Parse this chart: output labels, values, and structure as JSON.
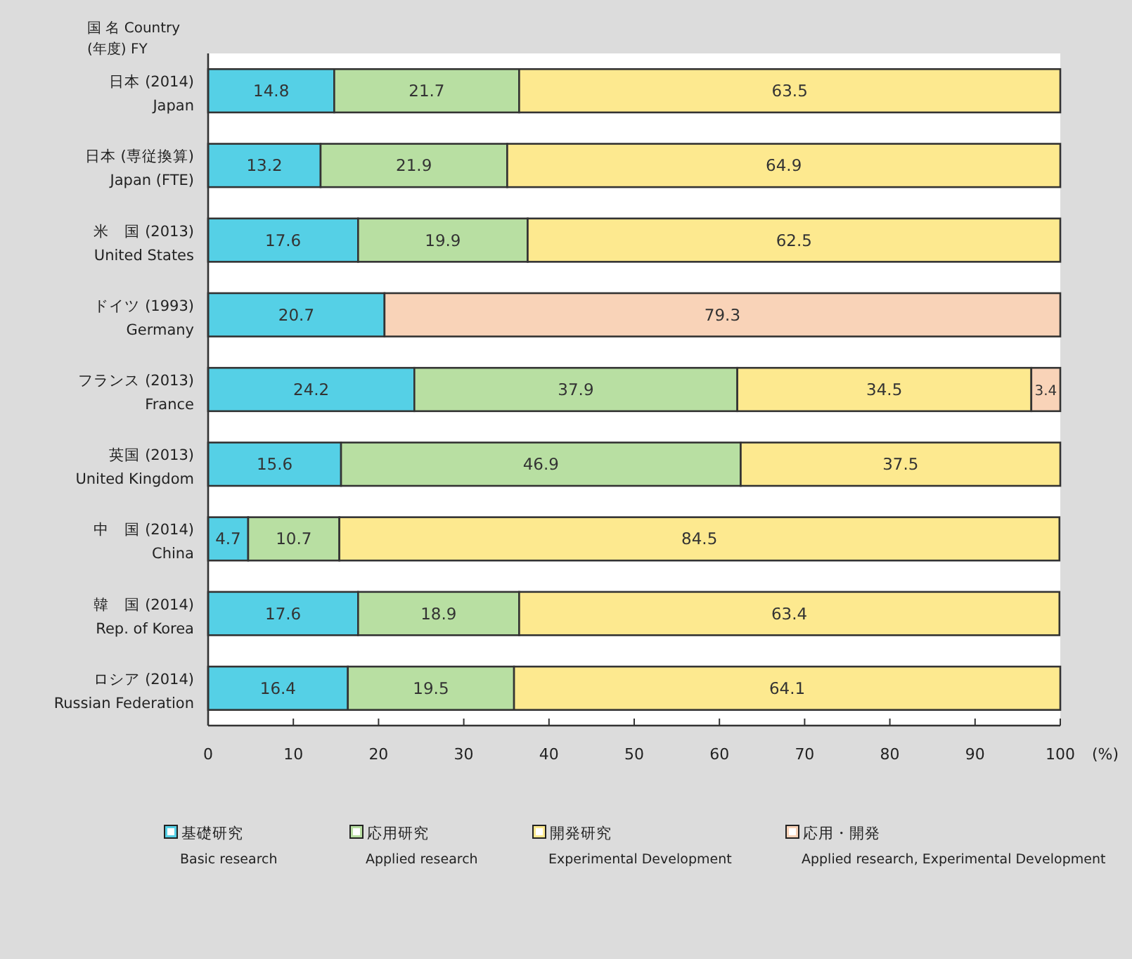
{
  "chart_data": {
    "type": "bar",
    "orientation": "horizontal",
    "stacked": true,
    "ylabel": "国 名 Country\n(年度) FY",
    "xlabel": "(%)",
    "categories": [
      "日本 (2014)\nJapan",
      "日本 (専従換算)\nJapan (FTE)",
      "米　国 (2013)\nUnited States",
      "ドイツ (1993)\nGermany",
      "フランス (2013)\nFrance",
      "英国 (2013)\nUnited Kingdom",
      "中　国 (2014)\nChina",
      "韓　国 (2014)\nRep. of Korea",
      "ロシア (2014)\nRussian Federation"
    ],
    "series": [
      {
        "name": "基礎研究\nBasic research",
        "color": "#55d0e6",
        "values": [
          14.8,
          13.2,
          17.6,
          20.7,
          24.2,
          15.6,
          4.7,
          17.6,
          16.4
        ]
      },
      {
        "name": "応用研究\nApplied research",
        "color": "#b8dfa2",
        "values": [
          21.7,
          21.9,
          19.9,
          null,
          37.9,
          46.9,
          10.7,
          18.9,
          19.5
        ]
      },
      {
        "name": "開発研究\nExperimental Development",
        "color": "#fde98f",
        "values": [
          63.5,
          64.9,
          62.5,
          null,
          34.5,
          37.5,
          84.5,
          63.4,
          64.1
        ]
      },
      {
        "name": "応用・開発\nApplied research, Experimental Development",
        "color": "#f9d3b8",
        "values": [
          null,
          null,
          null,
          79.3,
          3.4,
          null,
          null,
          null,
          null
        ]
      }
    ],
    "xlim": [
      0,
      100
    ],
    "xticks": [
      0,
      10,
      20,
      30,
      40,
      50,
      60,
      70,
      80,
      90,
      100
    ],
    "data_labels": true,
    "legend": "bottom",
    "grid": false
  }
}
